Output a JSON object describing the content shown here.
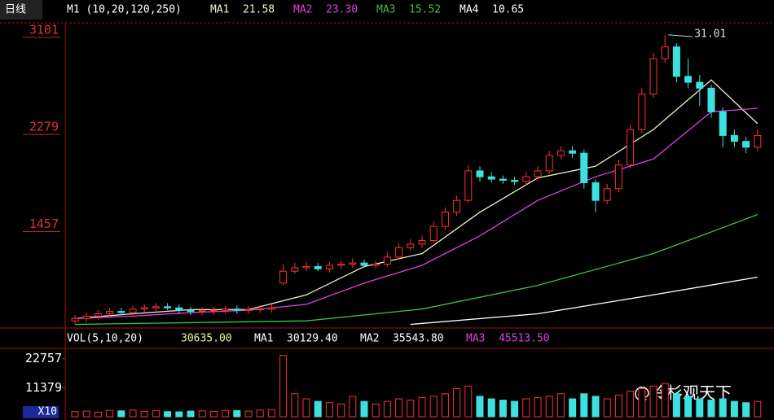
{
  "chart_data": [
    {
      "type": "candlestick",
      "title": "日线",
      "subtitle": "M1 (10,20,120,250)",
      "open": [
        680,
        700,
        720,
        740,
        760,
        750,
        780,
        790,
        800,
        790,
        770,
        760,
        765,
        770,
        780,
        770,
        775,
        780,
        1000,
        1100,
        1130,
        1140,
        1120,
        1150,
        1160,
        1170,
        1150,
        1160,
        1220,
        1300,
        1330,
        1360,
        1480,
        1600,
        1700,
        1950,
        1900,
        1880,
        1870,
        1860,
        1900,
        1950,
        2080,
        2120,
        2100,
        1850,
        1700,
        1800,
        2000,
        2300,
        2600,
        2900,
        3000,
        2750,
        2700,
        2650,
        2450,
        2250,
        2200,
        2150
      ],
      "close": [
        700,
        720,
        740,
        760,
        750,
        780,
        790,
        800,
        790,
        770,
        760,
        765,
        770,
        780,
        770,
        775,
        780,
        790,
        1100,
        1130,
        1140,
        1120,
        1150,
        1160,
        1170,
        1150,
        1160,
        1220,
        1300,
        1330,
        1360,
        1480,
        1600,
        1700,
        1950,
        1900,
        1880,
        1870,
        1860,
        1900,
        1950,
        2080,
        2120,
        2100,
        1850,
        1700,
        1800,
        2000,
        2300,
        2600,
        2900,
        3000,
        2750,
        2700,
        2650,
        2450,
        2250,
        2200,
        2150,
        2250
      ],
      "high": [
        730,
        750,
        770,
        790,
        790,
        810,
        820,
        830,
        830,
        820,
        800,
        795,
        800,
        810,
        810,
        805,
        810,
        820,
        1160,
        1170,
        1180,
        1170,
        1180,
        1190,
        1210,
        1200,
        1190,
        1260,
        1340,
        1370,
        1400,
        1520,
        1640,
        1740,
        2000,
        1990,
        1940,
        1910,
        1900,
        1940,
        1990,
        2120,
        2160,
        2160,
        2130,
        1880,
        1840,
        2040,
        2340,
        2650,
        2950,
        3101,
        3030,
        2900,
        2760,
        2680,
        2490,
        2300,
        2240,
        2300
      ],
      "low": [
        650,
        670,
        690,
        710,
        730,
        720,
        750,
        760,
        770,
        740,
        730,
        730,
        735,
        740,
        740,
        740,
        745,
        750,
        980,
        1080,
        1100,
        1100,
        1090,
        1120,
        1130,
        1130,
        1120,
        1140,
        1200,
        1270,
        1300,
        1340,
        1450,
        1570,
        1680,
        1860,
        1850,
        1840,
        1830,
        1830,
        1870,
        1920,
        2050,
        2060,
        1800,
        1600,
        1670,
        1770,
        1970,
        2270,
        2570,
        2870,
        2700,
        2650,
        2500,
        2400,
        2150,
        2150,
        2100,
        2120
      ],
      "up_color": "#ff3030",
      "down_color": "#3ce0e0",
      "ylim": [
        640,
        3190
      ],
      "yticks": [
        1457,
        2279,
        3101
      ],
      "series": [
        {
          "name": "MA1",
          "reading": "21.58",
          "color": "#f2f2c8",
          "x": [
            0,
            5,
            10,
            15,
            20,
            25,
            30,
            35,
            40,
            45,
            50,
            55,
            59
          ],
          "values": [
            700,
            740,
            775,
            775,
            900,
            1140,
            1250,
            1600,
            1890,
            1990,
            2300,
            2720,
            2350
          ]
        },
        {
          "name": "MA2",
          "reading": "23.30",
          "color": "#e040e0",
          "x": [
            0,
            5,
            10,
            15,
            20,
            25,
            30,
            35,
            40,
            45,
            50,
            55,
            59
          ],
          "values": [
            700,
            720,
            750,
            770,
            820,
            1000,
            1150,
            1400,
            1700,
            1900,
            2050,
            2450,
            2480
          ]
        },
        {
          "name": "MA3",
          "reading": "15.52",
          "color": "#40c040",
          "x": [
            0,
            20,
            30,
            40,
            50,
            59
          ],
          "values": [
            650,
            680,
            780,
            980,
            1250,
            1580
          ]
        },
        {
          "name": "MA4",
          "reading": "10.65",
          "color": "#ffffff",
          "x": [
            29,
            40,
            50,
            59
          ],
          "values": [
            650,
            740,
            900,
            1050
          ]
        }
      ],
      "annotation": "31.01"
    },
    {
      "type": "bar",
      "title": "VOL(5,10,20)",
      "reading": "30635.00",
      "values": [
        2000,
        2200,
        1800,
        2500,
        2300,
        2600,
        2100,
        2400,
        2000,
        1900,
        2200,
        2300,
        2100,
        2500,
        2400,
        2200,
        2600,
        2800,
        24000,
        9000,
        7000,
        6000,
        5500,
        5000,
        8000,
        6000,
        5000,
        6000,
        7000,
        6500,
        7500,
        8000,
        9000,
        11000,
        12000,
        8000,
        7000,
        6500,
        6000,
        7000,
        7500,
        8000,
        9000,
        7000,
        9000,
        8000,
        7000,
        8500,
        10000,
        11000,
        12000,
        13000,
        9000,
        8000,
        7000,
        6500,
        7000,
        6000,
        5500,
        6000
      ],
      "indicators": [
        {
          "name": "MA1",
          "reading": "30129.40",
          "color": "#ffffff"
        },
        {
          "name": "MA2",
          "reading": "35543.80",
          "color": "#ffffff"
        },
        {
          "name": "MA3",
          "reading": "45513.50",
          "color": "#e040e0"
        }
      ],
      "ylim": [
        0,
        26760
      ],
      "yticks": [
        11379,
        22757
      ],
      "unit": "X10"
    }
  ],
  "watermark": "@玲杉观天下"
}
